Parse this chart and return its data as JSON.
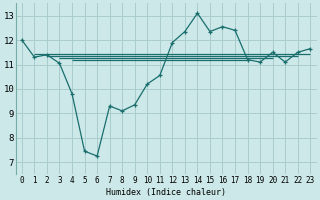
{
  "bg_color": "#cce8e8",
  "grid_color": "#aacccc",
  "line_color": "#1a6e6e",
  "xlabel": "Humidex (Indice chaleur)",
  "xlim": [
    -0.5,
    23.5
  ],
  "ylim": [
    6.5,
    13.5
  ],
  "xticks": [
    0,
    1,
    2,
    3,
    4,
    5,
    6,
    7,
    8,
    9,
    10,
    11,
    12,
    13,
    14,
    15,
    16,
    17,
    18,
    19,
    20,
    21,
    22,
    23
  ],
  "yticks": [
    7,
    8,
    9,
    10,
    11,
    12,
    13
  ],
  "main_x": [
    0,
    1,
    2,
    3,
    4,
    5,
    6,
    7,
    8,
    9,
    10,
    11,
    12,
    13,
    14,
    15,
    16,
    17,
    18,
    19,
    20,
    21,
    22,
    23
  ],
  "main_y": [
    12.0,
    11.3,
    11.4,
    11.05,
    9.8,
    7.45,
    7.25,
    9.3,
    9.1,
    9.35,
    10.2,
    10.55,
    11.9,
    12.35,
    13.1,
    12.35,
    12.55,
    12.4,
    11.2,
    11.1,
    11.5,
    11.1,
    11.5,
    11.65
  ],
  "flat_lines": [
    {
      "x": [
        1,
        23
      ],
      "y": [
        11.42,
        11.42
      ]
    },
    {
      "x": [
        2,
        22
      ],
      "y": [
        11.35,
        11.35
      ]
    },
    {
      "x": [
        3,
        20
      ],
      "y": [
        11.28,
        11.28
      ]
    },
    {
      "x": [
        4,
        18
      ],
      "y": [
        11.18,
        11.18
      ]
    }
  ]
}
